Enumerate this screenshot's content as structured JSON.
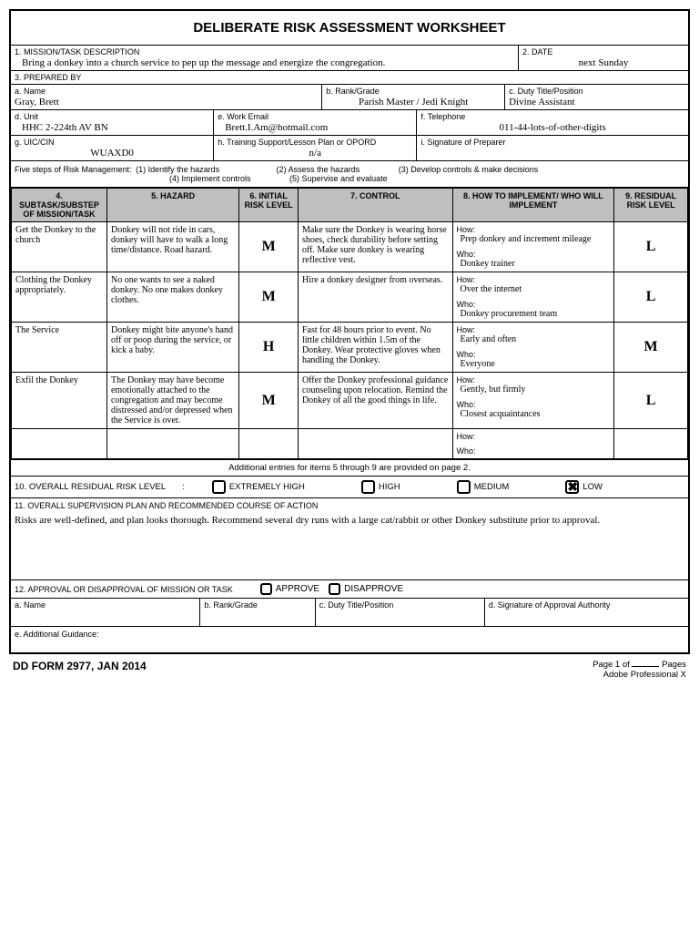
{
  "title": "DELIBERATE RISK ASSESSMENT WORKSHEET",
  "s1": {
    "label": "1. MISSION/TASK DESCRIPTION",
    "value": "Bring a donkey into a church service to pep up the message and energize the congregation."
  },
  "s2": {
    "label": "2. DATE",
    "value": "next Sunday"
  },
  "s3": {
    "label": "3. PREPARED BY"
  },
  "a": {
    "label": "a. Name",
    "value": "Gray, Brett"
  },
  "b": {
    "label": "b. Rank/Grade",
    "value": "Parish Master / Jedi Knight"
  },
  "c": {
    "label": "c. Duty Title/Position",
    "value": "Divine Assistant"
  },
  "d": {
    "label": "d. Unit",
    "value": "HHC 2-224th AV BN"
  },
  "e": {
    "label": "e. Work Email",
    "value": "Brett.I.Am@hotmail.com"
  },
  "f": {
    "label": "f. Telephone",
    "value": "011-44-lots-of-other-digits"
  },
  "g": {
    "label": "g. UIC/CIN",
    "value": "WUAXD0"
  },
  "h": {
    "label": "h. Training Support/Lesson Plan or OPORD",
    "value": "n/a"
  },
  "i": {
    "label": "i. Signature of Preparer",
    "value": ""
  },
  "steps": {
    "intro": "Five steps of Risk Management:",
    "s1": "(1) Identify the hazards",
    "s2": "(2) Assess the hazards",
    "s3": "(3) Develop controls & make decisions",
    "s4": "(4) Implement controls",
    "s5": "(5) Supervise and evaluate"
  },
  "cols": {
    "c4": "4. SUBTASK/SUBSTEP OF MISSION/TASK",
    "c5": "5. HAZARD",
    "c6": "6. INITIAL RISK LEVEL",
    "c7": "7. CONTROL",
    "c8": "8. HOW TO IMPLEMENT/ WHO WILL IMPLEMENT",
    "c9": "9. RESIDUAL RISK LEVEL"
  },
  "howlbl": "How:",
  "wholbl": "Who:",
  "rows": [
    {
      "sub": "Get the Donkey to the church",
      "haz": "Donkey will not ride in cars, donkey will have to walk a long time/distance. Road hazard.",
      "initial": "M",
      "ctl": "Make sure the Donkey is wearing horse shoes, check durability before setting off. Make sure donkey is wearing reflective vest.",
      "how": "Prep donkey and increment mileage",
      "who": "Donkey trainer",
      "residual": "L"
    },
    {
      "sub": "Clothing the Donkey appropriately.",
      "haz": "No one wants to see a naked donkey. No one makes donkey clothes.",
      "initial": "M",
      "ctl": "Hire a donkey designer from overseas.",
      "how": "Over the internet",
      "who": "Donkey procurement team",
      "residual": "L"
    },
    {
      "sub": "The Service",
      "haz": "Donkey might bite anyone's hand off or poop during the service, or kick a baby.",
      "initial": "H",
      "ctl": "Fast for 48 hours prior to event. No little children within 1.5m of the Donkey. Wear protective gloves when handling the Donkey.",
      "how": "Early and often",
      "who": "Everyone",
      "residual": "M"
    },
    {
      "sub": "Exfil the Donkey",
      "haz": "The Donkey may have become emotionally attached to the congregation and may become distressed and/or depressed when the Service is over.",
      "initial": "M",
      "ctl": "Offer the Donkey professional guidance counseling upon relocation. Remind the Donkey of all the good things in life.",
      "how": "Gently, but firmly",
      "who": "Closest acquaintances",
      "residual": "L"
    },
    {
      "sub": "",
      "haz": "",
      "initial": "",
      "ctl": "",
      "how": "",
      "who": "",
      "residual": ""
    }
  ],
  "addl": "Additional entries for items 5 through 9 are provided on page 2.",
  "s10": {
    "label": "10. OVERALL RESIDUAL RISK LEVEL",
    "opts": [
      "EXTREMELY HIGH",
      "HIGH",
      "MEDIUM",
      "LOW"
    ],
    "selected": 3
  },
  "s11": {
    "label": "11. OVERALL SUPERVISION PLAN AND RECOMMENDED COURSE OF ACTION",
    "value": "Risks are well-defined, and plan looks thorough. Recommend several dry runs with a large cat/rabbit or other Donkey substitute prior to approval."
  },
  "s12": {
    "label": "12. APPROVAL OR DISAPPROVAL OF MISSION OR TASK",
    "approve": "APPROVE",
    "disapprove": "DISAPPROVE",
    "a": "a. Name",
    "b": "b. Rank/Grade",
    "c": "c. Duty Title/Position",
    "d": "d. Signature of Approval Authority",
    "e": "e. Additional Guidance:"
  },
  "footer": {
    "form": "DD FORM 2977, JAN 2014",
    "page": "Page 1 of",
    "pages": "Pages",
    "adobe": "Adobe Professional X"
  }
}
